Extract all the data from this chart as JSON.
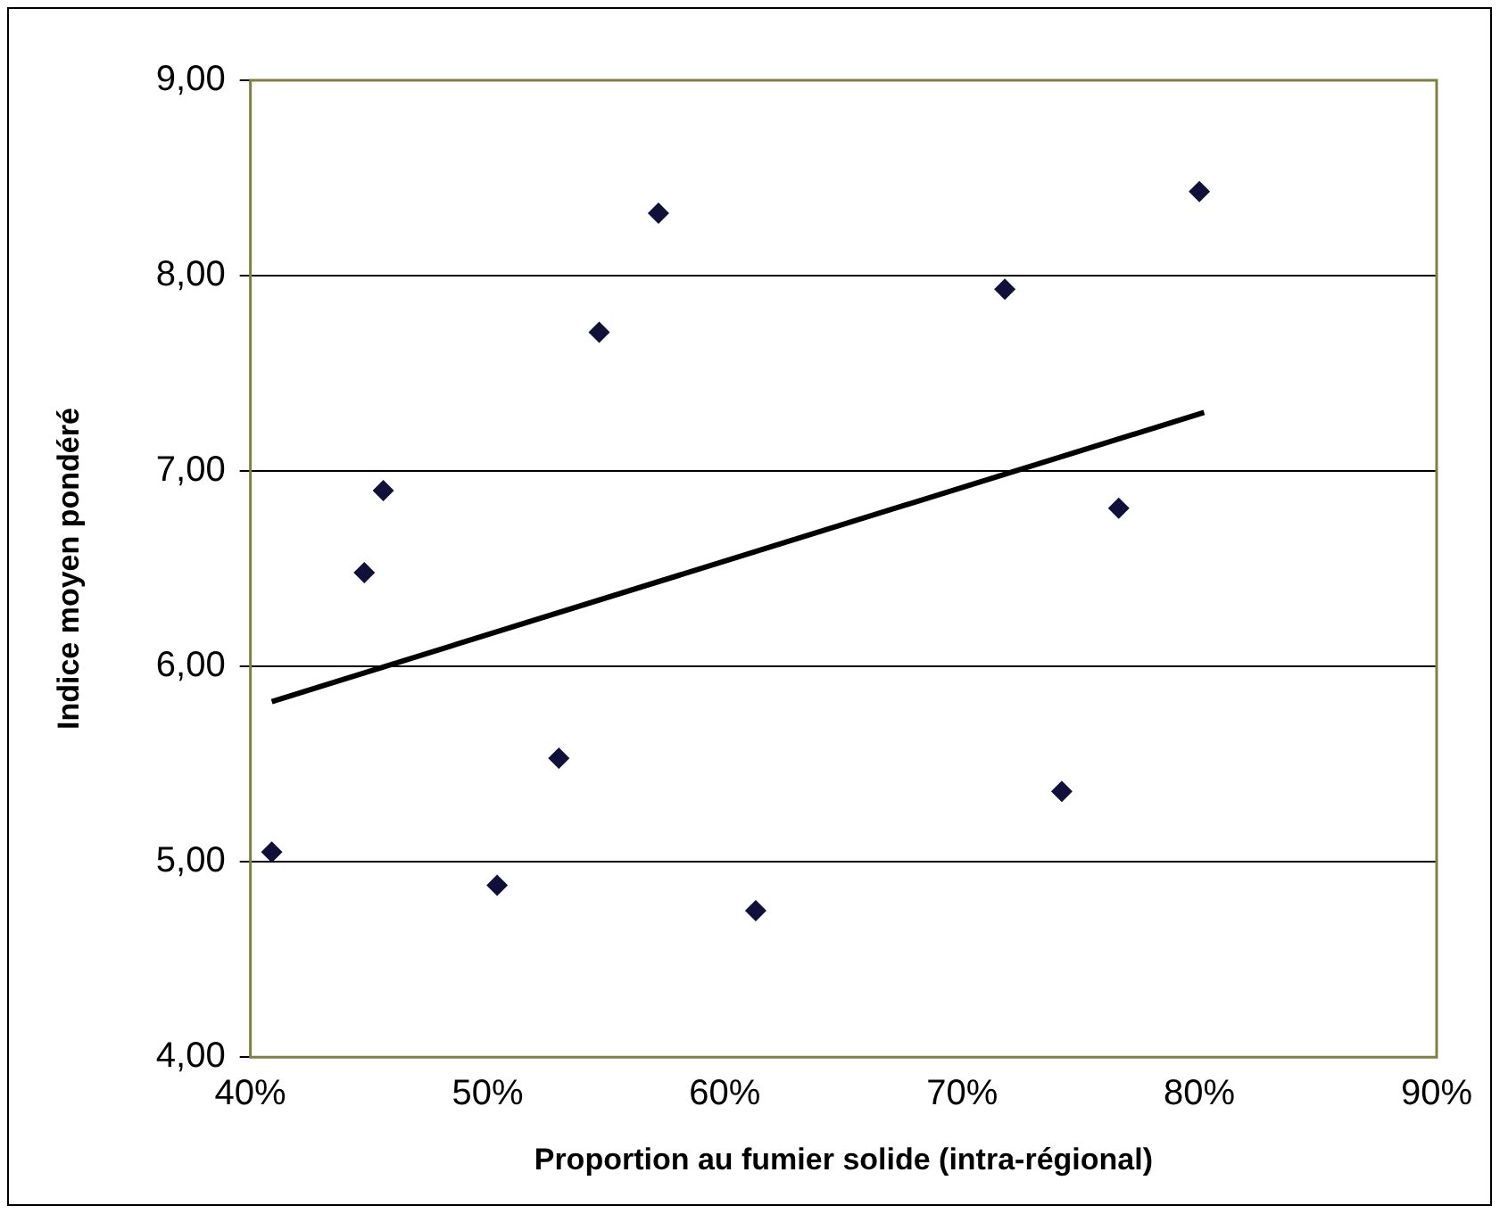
{
  "chart_data": {
    "type": "scatter",
    "xlabel": "Proportion au fumier solide (intra-régional)",
    "ylabel": "Indice moyen pondéré",
    "xlim": [
      40,
      90
    ],
    "xticks": [
      {
        "value": 40,
        "label": "40%"
      },
      {
        "value": 50,
        "label": "50%"
      },
      {
        "value": 60,
        "label": "60%"
      },
      {
        "value": 70,
        "label": "70%"
      },
      {
        "value": 80,
        "label": "80%"
      },
      {
        "value": 90,
        "label": "90%"
      }
    ],
    "ylim": [
      4,
      9
    ],
    "yticks": [
      {
        "value": 4,
        "label": "4,00"
      },
      {
        "value": 5,
        "label": "5,00"
      },
      {
        "value": 6,
        "label": "6,00"
      },
      {
        "value": 7,
        "label": "7,00"
      },
      {
        "value": 8,
        "label": "8,00"
      },
      {
        "value": 9,
        "label": "9,00"
      }
    ],
    "grid": "y",
    "legend": false,
    "series": [
      {
        "type": "scatter",
        "color": "#10103a",
        "marker": "diamond",
        "x": [
          40.9,
          44.8,
          45.6,
          50.4,
          53.0,
          54.7,
          57.2,
          61.3,
          71.8,
          74.2,
          76.6,
          80.0
        ],
        "values": [
          5.05,
          6.48,
          6.9,
          4.88,
          5.53,
          7.71,
          8.32,
          4.75,
          7.93,
          5.36,
          6.81,
          8.43
        ]
      },
      {
        "type": "line",
        "color": "#000000",
        "marker": "none",
        "line_style": "solid",
        "x": [
          40.9,
          80.2
        ],
        "values": [
          5.82,
          7.3
        ]
      }
    ]
  }
}
